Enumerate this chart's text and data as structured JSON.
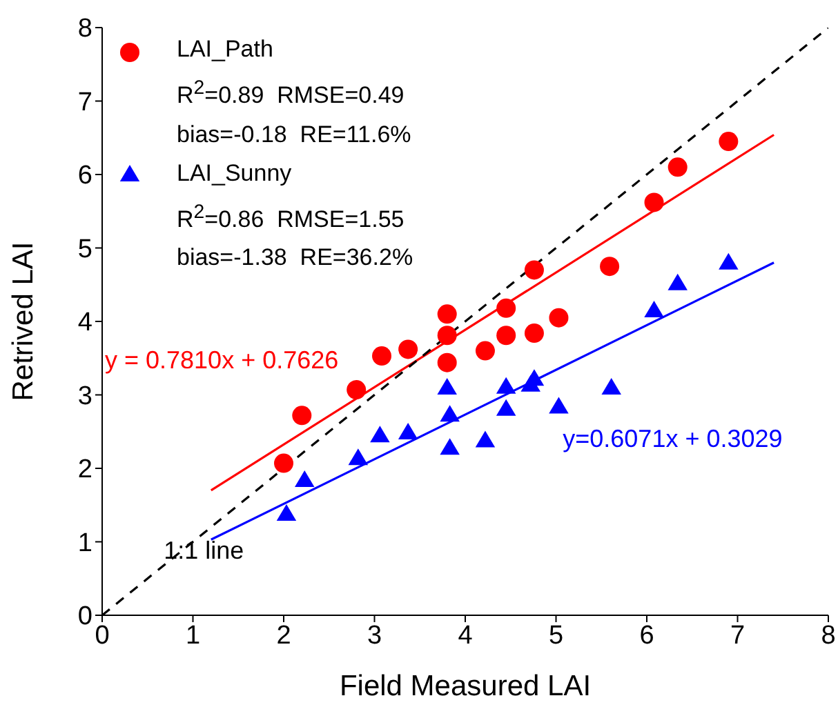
{
  "chart_data": {
    "type": "scatter",
    "xlabel": "Field Measured LAI",
    "ylabel": "Retrived LAI",
    "xlim": [
      0,
      8
    ],
    "xticks": [
      0,
      1,
      2,
      3,
      4,
      5,
      6,
      7,
      8
    ],
    "ylim": [
      0,
      8
    ],
    "yticks": [
      0,
      1,
      2,
      3,
      4,
      5,
      6,
      7,
      8
    ],
    "grid": false,
    "legend": "top left",
    "series": [
      {
        "name": "LAI_Path",
        "marker": "circle",
        "color": "#ff0000",
        "x": [
          2.0,
          2.2,
          2.8,
          3.08,
          3.37,
          3.8,
          3.8,
          3.8,
          4.22,
          4.45,
          4.45,
          4.76,
          4.76,
          5.03,
          5.59,
          6.08,
          6.34,
          6.9
        ],
        "values": [
          2.07,
          2.72,
          3.07,
          3.53,
          3.62,
          3.81,
          4.1,
          3.44,
          3.6,
          3.81,
          4.18,
          3.84,
          4.7,
          4.05,
          4.75,
          5.62,
          6.1,
          6.45
        ]
      },
      {
        "name": "LAI_Sunny",
        "marker": "triangle",
        "color": "#0000ff",
        "x": [
          2.03,
          2.23,
          2.82,
          3.06,
          3.37,
          3.8,
          3.83,
          3.83,
          4.22,
          4.45,
          4.45,
          4.72,
          4.76,
          5.03,
          5.61,
          6.08,
          6.34,
          6.9
        ],
        "values": [
          1.37,
          1.83,
          2.13,
          2.44,
          2.48,
          3.09,
          2.72,
          2.27,
          2.37,
          3.1,
          2.8,
          3.13,
          3.21,
          2.83,
          3.09,
          4.14,
          4.51,
          4.79
        ]
      },
      {
        "type": "line",
        "color": "#ff0000",
        "line_style": "solid",
        "x": [
          1.2,
          7.4
        ],
        "values": [
          1.7,
          6.54
        ]
      },
      {
        "type": "line",
        "color": "#0000ff",
        "line_style": "solid",
        "x": [
          1.2,
          7.4
        ],
        "values": [
          1.03,
          4.8
        ]
      },
      {
        "name": "1:1 line",
        "type": "line",
        "color": "#000000",
        "line_style": "dashed",
        "x": [
          0,
          8
        ],
        "values": [
          0,
          8
        ]
      }
    ],
    "annotations": [
      "R$^{2}$=0.89  RMSE=0.49",
      "bias=-0.18  RE=11.6%",
      "R$^{2}$=0.86  RMSE=1.55",
      "bias=-1.38  RE=36.2%",
      "y = 0.7810x + 0.7626",
      "y=0.6071x + 0.3029"
    ]
  }
}
